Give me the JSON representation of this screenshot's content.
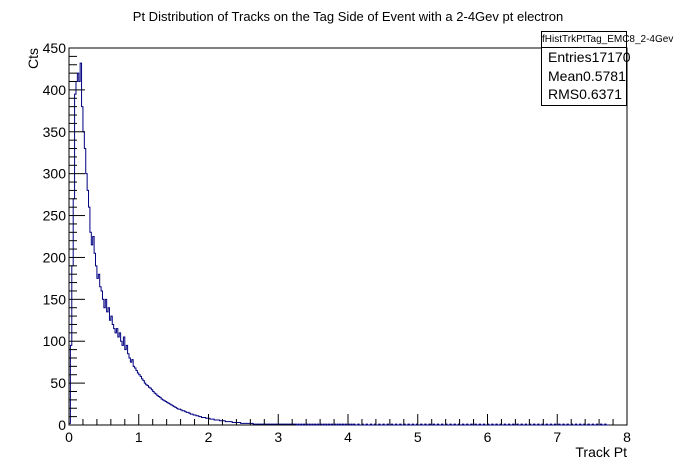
{
  "chart_data": {
    "type": "histogram",
    "title": "Pt Distribution of Tracks on the Tag Side of Event with a 2-4Gev pt electron",
    "xlabel": "Track Pt",
    "ylabel": "Cts",
    "xlim": [
      0,
      8
    ],
    "ylim": [
      0,
      450
    ],
    "x_major_ticks": [
      0,
      1,
      2,
      3,
      4,
      5,
      6,
      7,
      8
    ],
    "y_major_ticks": [
      0,
      50,
      100,
      150,
      200,
      250,
      300,
      350,
      400,
      450
    ],
    "grid": false,
    "legend": "none",
    "color": "#000080",
    "bin_width": 0.02,
    "counts": [
      2,
      95,
      190,
      270,
      395,
      410,
      420,
      410,
      432,
      380,
      350,
      330,
      300,
      280,
      260,
      230,
      215,
      225,
      205,
      190,
      175,
      180,
      165,
      160,
      150,
      140,
      150,
      135,
      140,
      125,
      130,
      120,
      115,
      110,
      115,
      105,
      110,
      100,
      95,
      105,
      90,
      95,
      85,
      80,
      75,
      78,
      70,
      68,
      65,
      62,
      60,
      58,
      55,
      53,
      50,
      48,
      47,
      45,
      44,
      42,
      40,
      38,
      37,
      35,
      34,
      33,
      31,
      30,
      29,
      28,
      27,
      26,
      25,
      24,
      23,
      22,
      21,
      20,
      19,
      19,
      18,
      17,
      17,
      16,
      15,
      15,
      14,
      13,
      13,
      12,
      12,
      11,
      11,
      10,
      10,
      9,
      9,
      9,
      8,
      8,
      8,
      7,
      7,
      7,
      6,
      6,
      6,
      6,
      5,
      5,
      5,
      5,
      4,
      4,
      4,
      4,
      4,
      3,
      3,
      3,
      3,
      3,
      3,
      2,
      2,
      2,
      2,
      2,
      2,
      2,
      2,
      2,
      1,
      1,
      1,
      1,
      1,
      1,
      1,
      1,
      1,
      1,
      1,
      1,
      1,
      1,
      1,
      1,
      1,
      1,
      1,
      1,
      1,
      1,
      1,
      1,
      1,
      1,
      1,
      1,
      1,
      1,
      1,
      0,
      1,
      0,
      1,
      0,
      1,
      0,
      1,
      0,
      1,
      0,
      1,
      0,
      1,
      0,
      1,
      0,
      1,
      0,
      1,
      0,
      1,
      0,
      1,
      0,
      1,
      0,
      1,
      0,
      1,
      0,
      1,
      0,
      1,
      0,
      1,
      0,
      1,
      0,
      1,
      0,
      1,
      0,
      0,
      1,
      0,
      0,
      1,
      0,
      0,
      1,
      0,
      0,
      1,
      0,
      0,
      1,
      0,
      0,
      1,
      0,
      0,
      1,
      0,
      0,
      1,
      0,
      0,
      1,
      0,
      0,
      1,
      0,
      0,
      1,
      0,
      0,
      1,
      0,
      0,
      1,
      0,
      0,
      1,
      0,
      0,
      1,
      0,
      0,
      1,
      0,
      0,
      1,
      0,
      0,
      1,
      0,
      0,
      1,
      0,
      0,
      1,
      0,
      0,
      1,
      0,
      0,
      1,
      0,
      0,
      1,
      0,
      0,
      1,
      0,
      0,
      1,
      0,
      0,
      1,
      0,
      0,
      1,
      0,
      0,
      1,
      0,
      0,
      1,
      0,
      0,
      1,
      0,
      0,
      1,
      0,
      0,
      1,
      0,
      0,
      1,
      0,
      0,
      1,
      0,
      0,
      1,
      0,
      0,
      1,
      0,
      0,
      1,
      0,
      0,
      1,
      0,
      0,
      1,
      0,
      0,
      1,
      0,
      0,
      1,
      0,
      0,
      1,
      0,
      0,
      1,
      0,
      0,
      1,
      0,
      0,
      1,
      0,
      0,
      1,
      0,
      0,
      1,
      0,
      0,
      1,
      0,
      0,
      1,
      0,
      0,
      1,
      0,
      0,
      1,
      0,
      0,
      1,
      0,
      0,
      1,
      0,
      0,
      1,
      0,
      0,
      1,
      0,
      0,
      1,
      0,
      0,
      1,
      0,
      0,
      1,
      0,
      0,
      1,
      0,
      0,
      1,
      0,
      0
    ]
  },
  "stats_box": {
    "name": "fHistTrkPtTag_EMC8_2-4Gev",
    "rows": [
      {
        "label": "Entries",
        "value": "17170"
      },
      {
        "label": "Mean",
        "value": "0.5781"
      },
      {
        "label": "RMS",
        "value": "0.6371"
      }
    ]
  }
}
